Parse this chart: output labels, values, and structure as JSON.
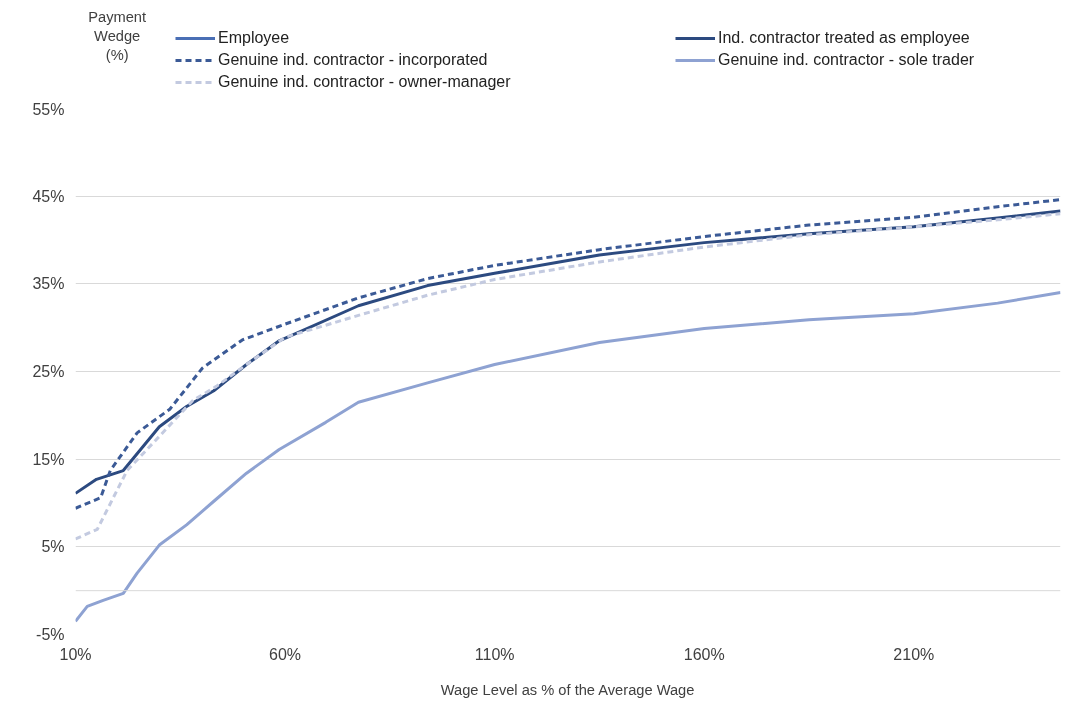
{
  "chart_data": {
    "type": "line",
    "ylabel": "Payment Wedge (%)",
    "xlabel": "Wage Level as % of the Average Wage",
    "xlim": [
      10,
      245
    ],
    "ylim": [
      -5,
      55
    ],
    "xticks": [
      {
        "value": 10,
        "label": "10%"
      },
      {
        "value": 60,
        "label": "60%"
      },
      {
        "value": 110,
        "label": "110%"
      },
      {
        "value": 160,
        "label": "160%"
      },
      {
        "value": 210,
        "label": "210%"
      }
    ],
    "yticks": [
      {
        "value": -5,
        "label": "-5%"
      },
      {
        "value": 5,
        "label": "5%"
      },
      {
        "value": 15,
        "label": "15%"
      },
      {
        "value": 25,
        "label": "25%"
      },
      {
        "value": 35,
        "label": "35%"
      },
      {
        "value": 45,
        "label": "45%"
      },
      {
        "value": 55,
        "label": "55%"
      }
    ],
    "grid": "y",
    "legend": "top",
    "ref_lines": [
      {
        "axis": "y",
        "value": 0,
        "color": "#d9d9d9"
      }
    ],
    "series": [
      {
        "name": "Employee",
        "color": "#4a6fb5",
        "line_style": "solid"
      },
      {
        "name": "Ind. contractor treated as employee",
        "color": "#2c4a80",
        "line_style": "solid",
        "x": [
          10,
          15,
          21.4,
          30,
          36.5,
          43,
          50.8,
          58.6,
          77.5,
          94,
          110,
          135,
          160,
          185,
          210,
          230,
          245
        ],
        "values": [
          11.1,
          12.7,
          13.7,
          18.7,
          21.0,
          22.8,
          25.8,
          28.5,
          32.5,
          34.8,
          36.2,
          38.3,
          39.7,
          40.7,
          41.5,
          42.5,
          43.3
        ]
      },
      {
        "name": "Genuine ind. contractor - incorporated",
        "color": "#3b5a96",
        "line_style": "dashed",
        "x": [
          10,
          16,
          18.3,
          24.7,
          32.5,
          40.3,
          49.8,
          60,
          77.5,
          94,
          110,
          135,
          160,
          185,
          210,
          230,
          245
        ],
        "values": [
          9.4,
          10.6,
          13.7,
          18.0,
          20.7,
          25.4,
          28.6,
          30.4,
          33.4,
          35.6,
          37.1,
          38.9,
          40.4,
          41.7,
          42.6,
          43.8,
          44.6
        ]
      },
      {
        "name": "Genuine ind. contractor - sole trader",
        "color": "#8ea2d2",
        "line_style": "solid",
        "x": [
          10,
          12.8,
          16.6,
          21.4,
          24.7,
          30,
          36.5,
          43,
          50.8,
          58.6,
          69.7,
          77.5,
          94,
          110,
          135,
          160,
          185,
          210,
          230,
          245
        ],
        "values": [
          -3.5,
          -1.8,
          -1.1,
          -0.3,
          2.0,
          5.2,
          7.5,
          10.2,
          13.4,
          16.1,
          19.2,
          21.5,
          23.7,
          25.8,
          28.3,
          29.9,
          30.9,
          31.6,
          32.8,
          34.0
        ]
      },
      {
        "name": "Genuine ind. contractor - owner-manager",
        "color": "#c3cae0",
        "line_style": "dashed",
        "x": [
          10,
          15.2,
          22.3,
          30,
          38,
          43.6,
          50.8,
          60,
          77.5,
          94,
          110,
          135,
          160,
          185,
          210,
          230,
          245
        ],
        "values": [
          5.9,
          7.0,
          13.7,
          17.6,
          21.7,
          23.3,
          25.8,
          28.9,
          31.4,
          33.7,
          35.5,
          37.5,
          39.2,
          40.6,
          41.5,
          42.3,
          43.0
        ]
      }
    ]
  }
}
